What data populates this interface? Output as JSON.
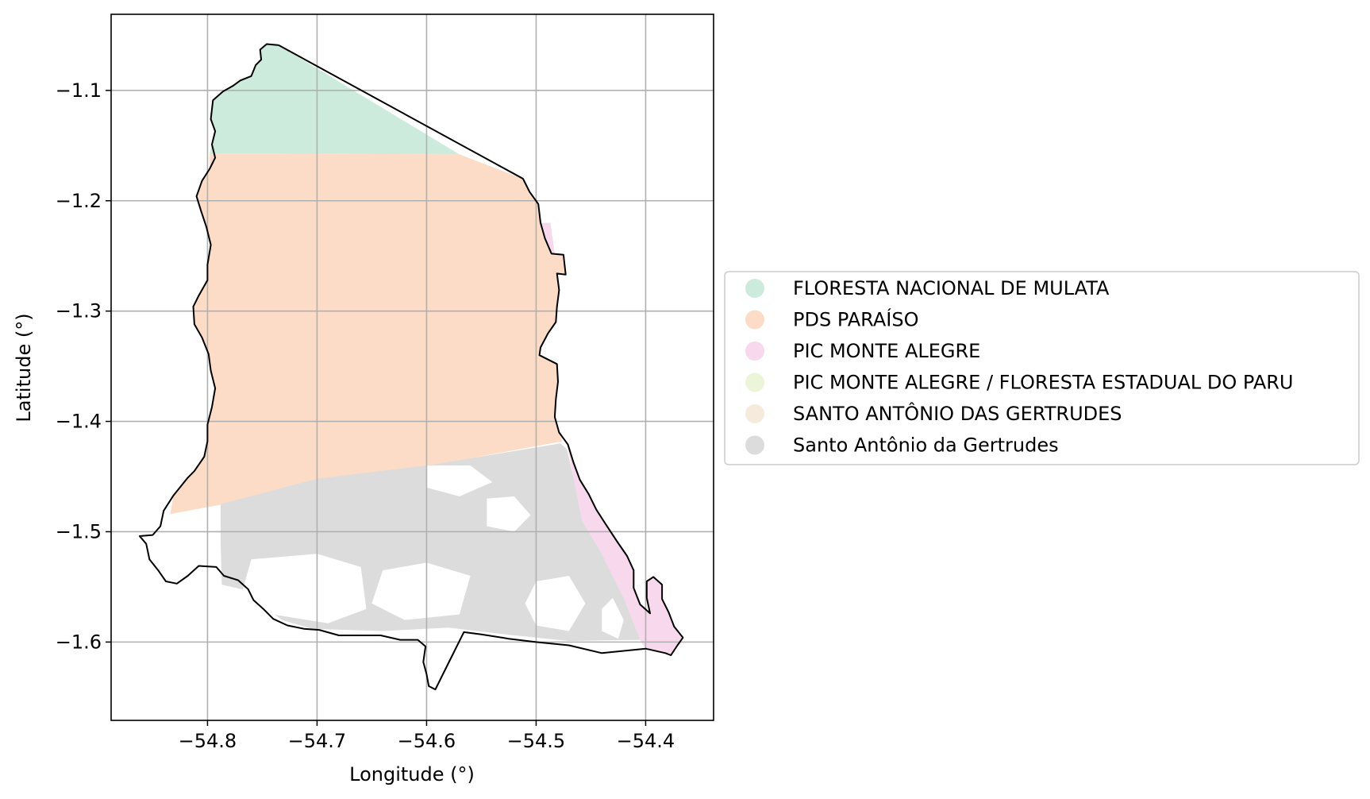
{
  "chart_data": {
    "type": "map",
    "title": "",
    "xlabel": "Longitude (°)",
    "ylabel": "Latitude (°)",
    "xlim": [
      -54.888,
      -54.338
    ],
    "ylim": [
      -1.671,
      -1.031
    ],
    "xticks": [
      -54.8,
      -54.7,
      -54.6,
      -54.5,
      -54.4
    ],
    "yticks": [
      -1.1,
      -1.2,
      -1.3,
      -1.4,
      -1.5,
      -1.6
    ],
    "xtick_labels": [
      "−54.8",
      "−54.7",
      "−54.6",
      "−54.5",
      "−54.4"
    ],
    "ytick_labels": [
      "−1.1",
      "−1.2",
      "−1.3",
      "−1.4",
      "−1.5",
      "−1.6"
    ],
    "grid": true,
    "legend_position": "center-right, outside plot",
    "legend": [
      {
        "label": "FLORESTA NACIONAL DE MULATA",
        "color": "#cdebdc"
      },
      {
        "label": "PDS PARAÍSO",
        "color": "#fcdcc6"
      },
      {
        "label": "PIC MONTE ALEGRE",
        "color": "#f7d8ec"
      },
      {
        "label": "PIC MONTE ALEGRE / FLORESTA ESTADUAL DO PARU",
        "color": "#ecf5d9"
      },
      {
        "label": "SANTO ANTÔNIO DAS GERTRUDES",
        "color": "#f6eadd"
      },
      {
        "label": "Santo Antônio da Gertrudes",
        "color": "#dcdcdc"
      }
    ],
    "boundary": [
      [
        -54.735,
        -1.059
      ],
      [
        -54.746,
        -1.058
      ],
      [
        -54.752,
        -1.063
      ],
      [
        -54.751,
        -1.072
      ],
      [
        -54.756,
        -1.077
      ],
      [
        -54.76,
        -1.087
      ],
      [
        -54.77,
        -1.091
      ],
      [
        -54.777,
        -1.096
      ],
      [
        -54.786,
        -1.101
      ],
      [
        -54.795,
        -1.109
      ],
      [
        -54.797,
        -1.126
      ],
      [
        -54.793,
        -1.137
      ],
      [
        -54.796,
        -1.149
      ],
      [
        -54.793,
        -1.161
      ],
      [
        -54.798,
        -1.171
      ],
      [
        -54.805,
        -1.182
      ],
      [
        -54.81,
        -1.196
      ],
      [
        -54.806,
        -1.209
      ],
      [
        -54.801,
        -1.224
      ],
      [
        -54.797,
        -1.24
      ],
      [
        -54.8,
        -1.258
      ],
      [
        -54.8,
        -1.272
      ],
      [
        -54.808,
        -1.286
      ],
      [
        -54.813,
        -1.296
      ],
      [
        -54.812,
        -1.312
      ],
      [
        -54.805,
        -1.324
      ],
      [
        -54.799,
        -1.339
      ],
      [
        -54.797,
        -1.354
      ],
      [
        -54.793,
        -1.37
      ],
      [
        -54.796,
        -1.387
      ],
      [
        -54.8,
        -1.403
      ],
      [
        -54.8,
        -1.418
      ],
      [
        -54.803,
        -1.432
      ],
      [
        -54.812,
        -1.445
      ],
      [
        -54.818,
        -1.451
      ],
      [
        -54.831,
        -1.467
      ],
      [
        -54.84,
        -1.481
      ],
      [
        -54.843,
        -1.495
      ],
      [
        -54.85,
        -1.503
      ],
      [
        -54.862,
        -1.504
      ],
      [
        -54.856,
        -1.511
      ],
      [
        -54.853,
        -1.525
      ],
      [
        -54.845,
        -1.535
      ],
      [
        -54.838,
        -1.545
      ],
      [
        -54.828,
        -1.547
      ],
      [
        -54.818,
        -1.54
      ],
      [
        -54.808,
        -1.531
      ],
      [
        -54.792,
        -1.532
      ],
      [
        -54.785,
        -1.54
      ],
      [
        -54.772,
        -1.544
      ],
      [
        -54.763,
        -1.552
      ],
      [
        -54.758,
        -1.562
      ],
      [
        -54.749,
        -1.57
      ],
      [
        -54.74,
        -1.579
      ],
      [
        -54.727,
        -1.585
      ],
      [
        -54.712,
        -1.588
      ],
      [
        -54.698,
        -1.589
      ],
      [
        -54.68,
        -1.594
      ],
      [
        -54.662,
        -1.594
      ],
      [
        -54.642,
        -1.594
      ],
      [
        -54.624,
        -1.598
      ],
      [
        -54.608,
        -1.598
      ],
      [
        -54.601,
        -1.604
      ],
      [
        -54.603,
        -1.618
      ],
      [
        -54.6,
        -1.629
      ],
      [
        -54.598,
        -1.64
      ],
      [
        -54.592,
        -1.643
      ],
      [
        -54.579,
        -1.617
      ],
      [
        -54.566,
        -1.591
      ],
      [
        -54.55,
        -1.593
      ],
      [
        -54.525,
        -1.597
      ],
      [
        -54.5,
        -1.6
      ],
      [
        -54.47,
        -1.603
      ],
      [
        -54.44,
        -1.61
      ],
      [
        -54.4,
        -1.606
      ],
      [
        -54.382,
        -1.61
      ],
      [
        -54.377,
        -1.612
      ],
      [
        -54.371,
        -1.603
      ],
      [
        -54.366,
        -1.596
      ],
      [
        -54.374,
        -1.586
      ],
      [
        -54.379,
        -1.573
      ],
      [
        -54.385,
        -1.561
      ],
      [
        -54.385,
        -1.548
      ],
      [
        -54.393,
        -1.541
      ],
      [
        -54.399,
        -1.545
      ],
      [
        -54.399,
        -1.56
      ],
      [
        -54.396,
        -1.574
      ],
      [
        -54.405,
        -1.566
      ],
      [
        -54.411,
        -1.551
      ],
      [
        -54.411,
        -1.535
      ],
      [
        -54.417,
        -1.522
      ],
      [
        -54.426,
        -1.509
      ],
      [
        -54.436,
        -1.494
      ],
      [
        -54.445,
        -1.48
      ],
      [
        -54.452,
        -1.466
      ],
      [
        -54.46,
        -1.453
      ],
      [
        -54.466,
        -1.437
      ],
      [
        -54.471,
        -1.421
      ],
      [
        -54.479,
        -1.41
      ],
      [
        -54.483,
        -1.396
      ],
      [
        -54.482,
        -1.38
      ],
      [
        -54.48,
        -1.364
      ],
      [
        -54.481,
        -1.348
      ],
      [
        -54.497,
        -1.34
      ],
      [
        -54.496,
        -1.333
      ],
      [
        -54.489,
        -1.32
      ],
      [
        -54.482,
        -1.31
      ],
      [
        -54.481,
        -1.296
      ],
      [
        -54.479,
        -1.281
      ],
      [
        -54.481,
        -1.266
      ],
      [
        -54.473,
        -1.267
      ],
      [
        -54.475,
        -1.249
      ],
      [
        -54.486,
        -1.248
      ],
      [
        -54.492,
        -1.234
      ],
      [
        -54.496,
        -1.22
      ],
      [
        -54.498,
        -1.203
      ],
      [
        -54.506,
        -1.192
      ],
      [
        -54.512,
        -1.18
      ],
      [
        -54.735,
        -1.059
      ]
    ],
    "regions": [
      {
        "name": "FLORESTA NACIONAL DE MULATA",
        "color": "#cdebdc",
        "points": [
          [
            -54.735,
            -1.059
          ],
          [
            -54.746,
            -1.058
          ],
          [
            -54.752,
            -1.063
          ],
          [
            -54.751,
            -1.072
          ],
          [
            -54.756,
            -1.077
          ],
          [
            -54.76,
            -1.087
          ],
          [
            -54.77,
            -1.091
          ],
          [
            -54.777,
            -1.096
          ],
          [
            -54.786,
            -1.101
          ],
          [
            -54.795,
            -1.109
          ],
          [
            -54.797,
            -1.126
          ],
          [
            -54.793,
            -1.137
          ],
          [
            -54.796,
            -1.149
          ],
          [
            -54.798,
            -1.157
          ],
          [
            -54.57,
            -1.158
          ],
          [
            -54.735,
            -1.059
          ]
        ]
      },
      {
        "name": "PDS PARAÍSO",
        "color": "#fcdcc6",
        "points": [
          [
            -54.798,
            -1.157
          ],
          [
            -54.57,
            -1.158
          ],
          [
            -54.512,
            -1.18
          ],
          [
            -54.506,
            -1.192
          ],
          [
            -54.498,
            -1.203
          ],
          [
            -54.496,
            -1.22
          ],
          [
            -54.492,
            -1.234
          ],
          [
            -54.486,
            -1.248
          ],
          [
            -54.475,
            -1.249
          ],
          [
            -54.473,
            -1.267
          ],
          [
            -54.481,
            -1.266
          ],
          [
            -54.479,
            -1.281
          ],
          [
            -54.481,
            -1.296
          ],
          [
            -54.482,
            -1.31
          ],
          [
            -54.489,
            -1.32
          ],
          [
            -54.496,
            -1.333
          ],
          [
            -54.497,
            -1.34
          ],
          [
            -54.481,
            -1.348
          ],
          [
            -54.48,
            -1.364
          ],
          [
            -54.482,
            -1.38
          ],
          [
            -54.483,
            -1.396
          ],
          [
            -54.479,
            -1.41
          ],
          [
            -54.476,
            -1.418
          ],
          [
            -54.834,
            -1.484
          ],
          [
            -54.831,
            -1.467
          ],
          [
            -54.818,
            -1.451
          ],
          [
            -54.812,
            -1.445
          ],
          [
            -54.803,
            -1.432
          ],
          [
            -54.8,
            -1.418
          ],
          [
            -54.8,
            -1.403
          ],
          [
            -54.796,
            -1.387
          ],
          [
            -54.793,
            -1.37
          ],
          [
            -54.797,
            -1.354
          ],
          [
            -54.799,
            -1.339
          ],
          [
            -54.805,
            -1.324
          ],
          [
            -54.812,
            -1.312
          ],
          [
            -54.813,
            -1.296
          ],
          [
            -54.808,
            -1.286
          ],
          [
            -54.8,
            -1.272
          ],
          [
            -54.8,
            -1.258
          ],
          [
            -54.797,
            -1.24
          ],
          [
            -54.801,
            -1.224
          ],
          [
            -54.806,
            -1.209
          ],
          [
            -54.81,
            -1.196
          ],
          [
            -54.805,
            -1.182
          ],
          [
            -54.798,
            -1.171
          ],
          [
            -54.798,
            -1.157
          ]
        ]
      },
      {
        "name": "PIC MONTE ALEGRE",
        "color": "#f7d8ec",
        "points": [
          [
            -54.496,
            -1.22
          ],
          [
            -54.487,
            -1.22
          ],
          [
            -54.483,
            -1.248
          ],
          [
            -54.473,
            -1.252
          ],
          [
            -54.475,
            -1.249
          ],
          [
            -54.486,
            -1.248
          ],
          [
            -54.492,
            -1.234
          ],
          [
            -54.496,
            -1.22
          ]
        ]
      },
      {
        "name": "PIC MONTE ALEGRE",
        "color": "#f7d8ec",
        "points": [
          [
            -54.479,
            -1.41
          ],
          [
            -54.471,
            -1.421
          ],
          [
            -54.466,
            -1.437
          ],
          [
            -54.46,
            -1.453
          ],
          [
            -54.452,
            -1.466
          ],
          [
            -54.445,
            -1.48
          ],
          [
            -54.436,
            -1.494
          ],
          [
            -54.426,
            -1.509
          ],
          [
            -54.417,
            -1.522
          ],
          [
            -54.411,
            -1.535
          ],
          [
            -54.411,
            -1.551
          ],
          [
            -54.405,
            -1.566
          ],
          [
            -54.396,
            -1.574
          ],
          [
            -54.399,
            -1.56
          ],
          [
            -54.399,
            -1.545
          ],
          [
            -54.393,
            -1.541
          ],
          [
            -54.385,
            -1.548
          ],
          [
            -54.385,
            -1.561
          ],
          [
            -54.379,
            -1.573
          ],
          [
            -54.374,
            -1.586
          ],
          [
            -54.366,
            -1.596
          ],
          [
            -54.371,
            -1.603
          ],
          [
            -54.377,
            -1.612
          ],
          [
            -54.382,
            -1.61
          ],
          [
            -54.4,
            -1.606
          ],
          [
            -54.405,
            -1.598
          ],
          [
            -54.42,
            -1.56
          ],
          [
            -54.44,
            -1.52
          ],
          [
            -54.458,
            -1.49
          ],
          [
            -54.466,
            -1.45
          ],
          [
            -54.472,
            -1.42
          ],
          [
            -54.479,
            -1.41
          ]
        ]
      },
      {
        "name": "Santo Antônio da Gertrudes",
        "color": "#dcdcdc",
        "points": [
          [
            -54.478,
            -1.42
          ],
          [
            -54.6,
            -1.44
          ],
          [
            -54.7,
            -1.452
          ],
          [
            -54.788,
            -1.475
          ],
          [
            -54.788,
            -1.51
          ],
          [
            -54.787,
            -1.548
          ],
          [
            -54.765,
            -1.553
          ],
          [
            -54.75,
            -1.567
          ],
          [
            -54.732,
            -1.58
          ],
          [
            -54.705,
            -1.588
          ],
          [
            -54.64,
            -1.59
          ],
          [
            -54.58,
            -1.587
          ],
          [
            -54.52,
            -1.594
          ],
          [
            -54.47,
            -1.599
          ],
          [
            -54.405,
            -1.598
          ],
          [
            -54.42,
            -1.56
          ],
          [
            -54.44,
            -1.52
          ],
          [
            -54.458,
            -1.49
          ],
          [
            -54.466,
            -1.45
          ],
          [
            -54.472,
            -1.425
          ],
          [
            -54.478,
            -1.42
          ]
        ]
      }
    ],
    "gaps": [
      {
        "points": [
          [
            -54.76,
            -1.525
          ],
          [
            -54.7,
            -1.52
          ],
          [
            -54.66,
            -1.532
          ],
          [
            -54.655,
            -1.57
          ],
          [
            -54.69,
            -1.583
          ],
          [
            -54.74,
            -1.575
          ],
          [
            -54.77,
            -1.56
          ],
          [
            -54.76,
            -1.525
          ]
        ]
      },
      {
        "points": [
          [
            -54.64,
            -1.535
          ],
          [
            -54.6,
            -1.528
          ],
          [
            -54.56,
            -1.54
          ],
          [
            -54.57,
            -1.575
          ],
          [
            -54.62,
            -1.58
          ],
          [
            -54.65,
            -1.565
          ],
          [
            -54.64,
            -1.535
          ]
        ]
      },
      {
        "points": [
          [
            -54.545,
            -1.47
          ],
          [
            -54.52,
            -1.468
          ],
          [
            -54.505,
            -1.485
          ],
          [
            -54.52,
            -1.5
          ],
          [
            -54.545,
            -1.495
          ],
          [
            -54.545,
            -1.47
          ]
        ]
      },
      {
        "points": [
          [
            -54.5,
            -1.545
          ],
          [
            -54.47,
            -1.54
          ],
          [
            -54.455,
            -1.565
          ],
          [
            -54.47,
            -1.59
          ],
          [
            -54.5,
            -1.585
          ],
          [
            -54.51,
            -1.565
          ],
          [
            -54.5,
            -1.545
          ]
        ]
      },
      {
        "points": [
          [
            -54.6,
            -1.44
          ],
          [
            -54.56,
            -1.44
          ],
          [
            -54.54,
            -1.455
          ],
          [
            -54.57,
            -1.468
          ],
          [
            -54.6,
            -1.46
          ],
          [
            -54.6,
            -1.44
          ]
        ]
      },
      {
        "points": [
          [
            -54.43,
            -1.56
          ],
          [
            -54.42,
            -1.58
          ],
          [
            -54.425,
            -1.597
          ],
          [
            -54.44,
            -1.59
          ],
          [
            -54.44,
            -1.57
          ],
          [
            -54.43,
            -1.56
          ]
        ]
      }
    ]
  }
}
